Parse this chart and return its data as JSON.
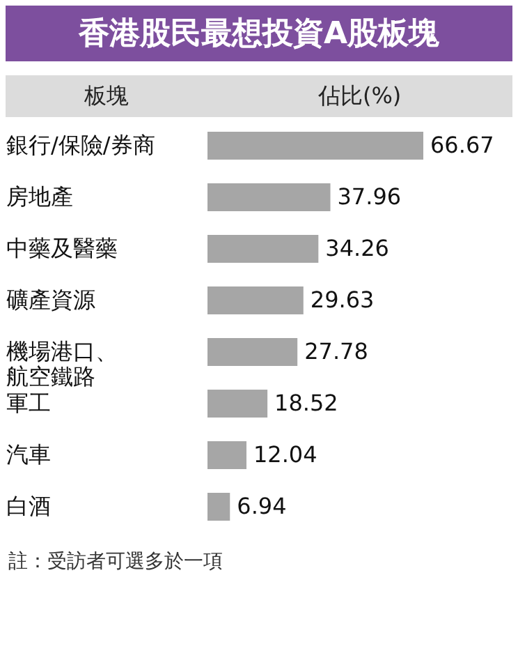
{
  "chart_data": {
    "type": "bar",
    "orientation": "horizontal",
    "title": "香港股民最想投資A股板塊",
    "xlabel": "佔比(%)",
    "ylabel": "板塊",
    "categories": [
      "銀行/保險/券商",
      "房地產",
      "中藥及醫藥",
      "礦產資源",
      "機場港口、航空鐵路",
      "軍工",
      "汽車",
      "白酒"
    ],
    "values": [
      66.67,
      37.96,
      34.26,
      29.63,
      27.78,
      18.52,
      12.04,
      6.94
    ],
    "color": "#a6a6a6",
    "data_labels": true,
    "annotations": [
      "註：受訪者可選多於一項"
    ]
  }
}
